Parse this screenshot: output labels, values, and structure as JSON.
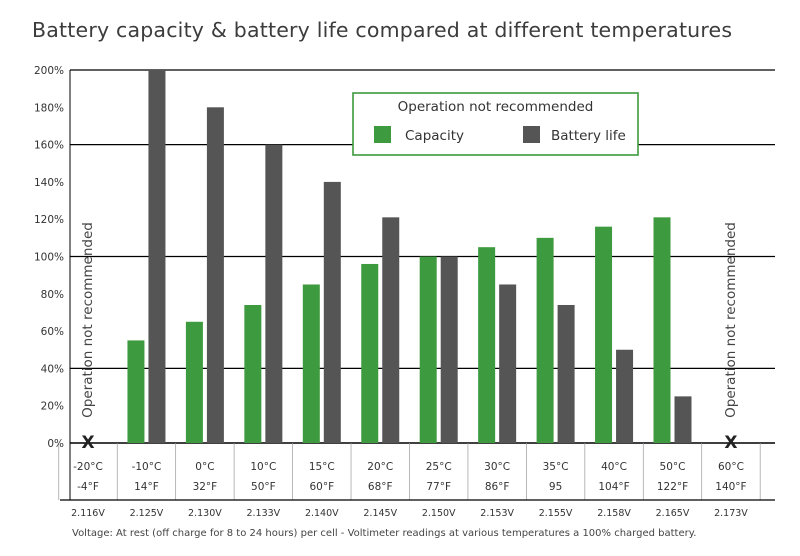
{
  "title": "Battery capacity & battery life compared at different temperatures",
  "legend": {
    "title": "Operation not recommended",
    "items": [
      "Capacity",
      "Battery life"
    ]
  },
  "side_notes": {
    "left": "Operation not recommended",
    "right": "Operation not recommended",
    "marker": "X"
  },
  "footnote": "Voltage: At rest (off charge for 8 to 24 hours) per cell - Voltimeter readings at various temperatures a 100% charged battery.",
  "colors": {
    "capacity": "#3e9a3e",
    "battery_life": "#555555",
    "legend_border": "#3e9a3e",
    "gridline": "#000000"
  },
  "chart_data": {
    "type": "bar",
    "title": "Battery capacity & battery life compared at different temperatures",
    "ylim": [
      0,
      200
    ],
    "y_ticks": [
      "0%",
      "20%",
      "40%",
      "60%",
      "80%",
      "100%",
      "120%",
      "140%",
      "160%",
      "180%",
      "200%"
    ],
    "grid": "horizontal at 0%, 40%, 100%, 160%, 200%",
    "legend_position": "top-right",
    "categories": [
      {
        "c": "-20°C",
        "f": "-4°F",
        "v": "2.116V"
      },
      {
        "c": "-10°C",
        "f": "14°F",
        "v": "2.125V"
      },
      {
        "c": "0°C",
        "f": "32°F",
        "v": "2.130V"
      },
      {
        "c": "10°C",
        "f": "50°F",
        "v": "2.133V"
      },
      {
        "c": "15°C",
        "f": "60°F",
        "v": "2.140V"
      },
      {
        "c": "20°C",
        "f": "68°F",
        "v": "2.145V"
      },
      {
        "c": "25°C",
        "f": "77°F",
        "v": "2.150V"
      },
      {
        "c": "30°C",
        "f": "86°F",
        "v": "2.153V"
      },
      {
        "c": "35°C",
        "f": "95",
        "v": "2.155V"
      },
      {
        "c": "40°C",
        "f": "104°F",
        "v": "2.158V"
      },
      {
        "c": "50°C",
        "f": "122°F",
        "v": "2.165V"
      },
      {
        "c": "60°C",
        "f": "140°F",
        "v": "2.173V"
      }
    ],
    "series": [
      {
        "name": "Capacity",
        "values": [
          null,
          55,
          65,
          74,
          85,
          96,
          100,
          105,
          110,
          116,
          121,
          null
        ]
      },
      {
        "name": "Battery life",
        "values": [
          null,
          200,
          180,
          160,
          140,
          121,
          100,
          85,
          74,
          50,
          25,
          null
        ]
      }
    ]
  }
}
